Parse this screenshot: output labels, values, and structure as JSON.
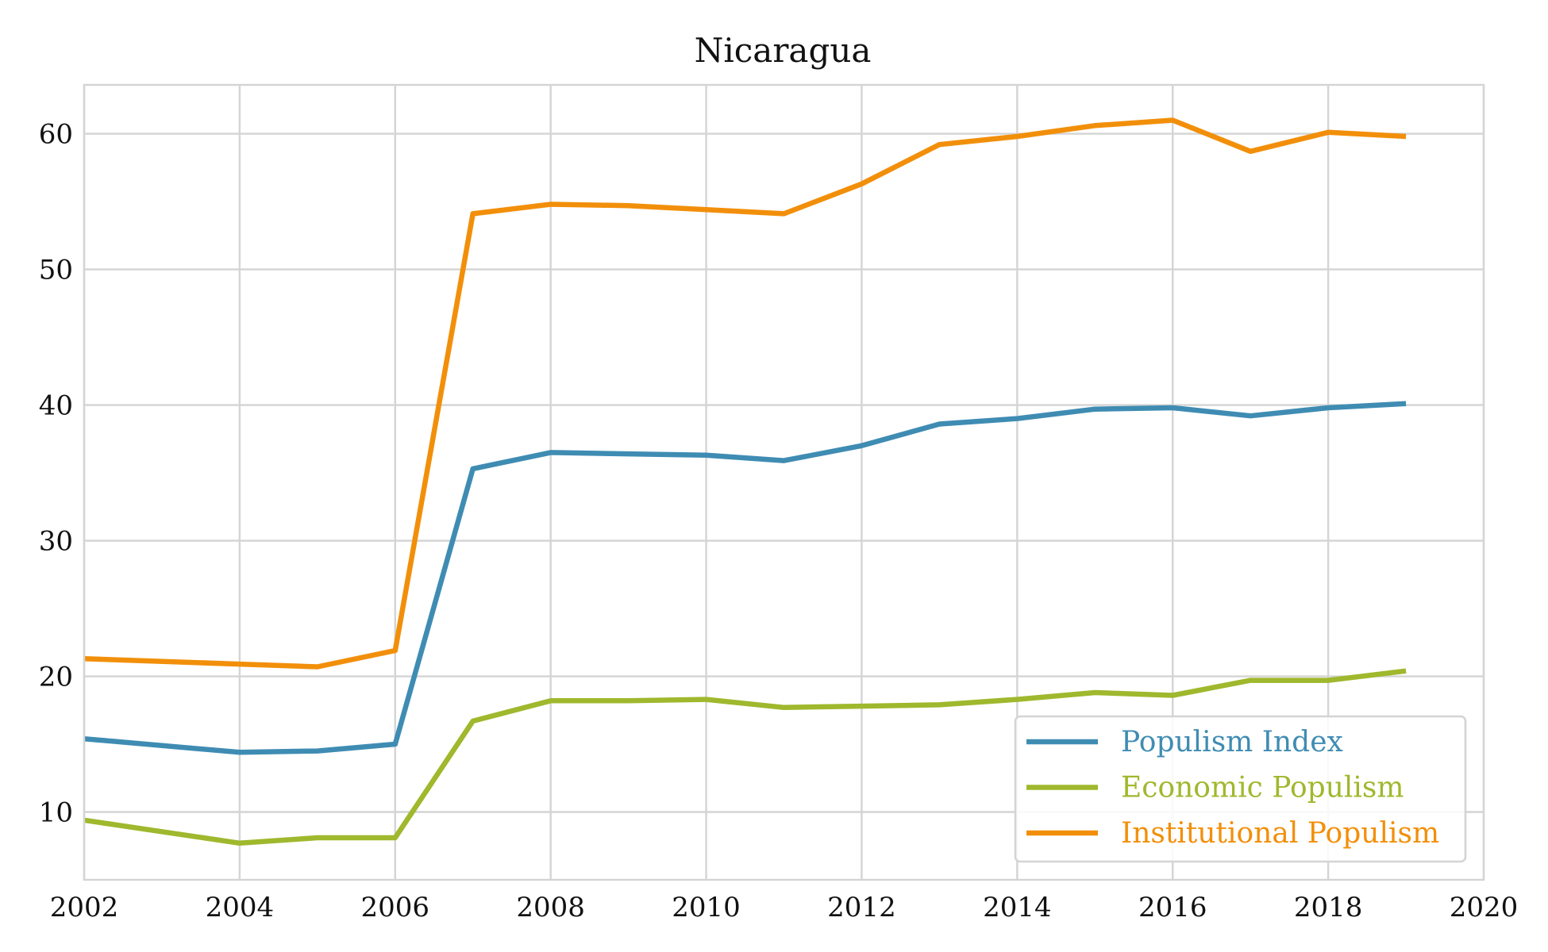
{
  "chart_data": {
    "type": "line",
    "title": "Nicaragua",
    "xlabel": "",
    "ylabel": "",
    "xlim": [
      2002,
      2020
    ],
    "ylim": [
      5,
      63.6
    ],
    "xticks": [
      "2002",
      "2004",
      "2006",
      "2008",
      "2010",
      "2012",
      "2014",
      "2016",
      "2018",
      "2020"
    ],
    "yticks": [
      "10",
      "20",
      "30",
      "40",
      "50",
      "60"
    ],
    "grid": true,
    "legend_position": "bottom-right",
    "x": [
      2002,
      2004,
      2005,
      2006,
      2007,
      2008,
      2009,
      2010,
      2011,
      2012,
      2013,
      2014,
      2015,
      2016,
      2017,
      2018,
      2019
    ],
    "series": [
      {
        "name": "Populism Index",
        "color": "#3f8cb3",
        "values": [
          15.4,
          14.4,
          14.5,
          15.0,
          35.3,
          36.5,
          36.4,
          36.3,
          35.9,
          37.0,
          38.6,
          39.0,
          39.7,
          39.8,
          39.2,
          39.8,
          40.1
        ]
      },
      {
        "name": "Economic Populism",
        "color": "#9fb82d",
        "values": [
          9.4,
          7.7,
          8.1,
          8.1,
          16.7,
          18.2,
          18.2,
          18.3,
          17.7,
          17.8,
          17.9,
          18.3,
          18.8,
          18.6,
          19.7,
          19.7,
          20.4
        ]
      },
      {
        "name": "Institutional Populism",
        "color": "#f28f0a",
        "values": [
          21.3,
          20.9,
          20.7,
          21.9,
          54.1,
          54.8,
          54.7,
          54.4,
          54.1,
          56.3,
          59.2,
          59.8,
          60.6,
          61.0,
          58.7,
          60.1,
          59.8
        ]
      }
    ]
  }
}
